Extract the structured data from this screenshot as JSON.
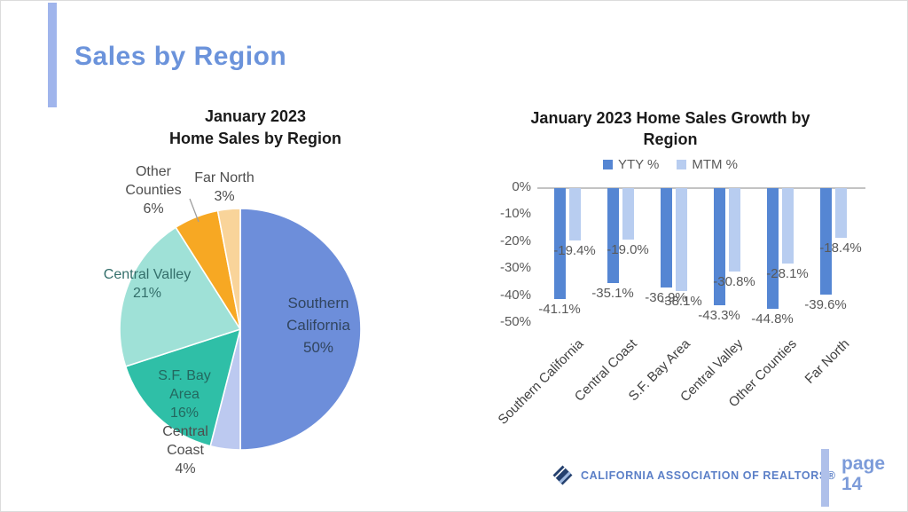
{
  "slide": {
    "title": "Sales by Region",
    "footer_text": "CALIFORNIA ASSOCIATION OF REALTORS®",
    "page_label": "page",
    "page_number": "14",
    "accent_color": "#a0b5ec",
    "title_color": "#6b93db"
  },
  "chart_data": [
    {
      "type": "pie",
      "title_line1": "January 2023",
      "title_line2": "Home Sales by Region",
      "direction": "clockwise",
      "start_angle": "top",
      "slices": [
        {
          "label": "Southern California",
          "value": 50,
          "color": "#6d8eda",
          "display": "Southern\nCalifornia\n50%"
        },
        {
          "label": "Central Coast",
          "value": 4,
          "color": "#bcc9f0",
          "display": "Central\nCoast\n4%"
        },
        {
          "label": "S.F. Bay Area",
          "value": 16,
          "color": "#2fbfa7",
          "display": "S.F. Bay\nArea\n16%"
        },
        {
          "label": "Central Valley",
          "value": 21,
          "color": "#9fe1d7",
          "display": "Central Valley\n21%"
        },
        {
          "label": "Other Counties",
          "value": 6,
          "color": "#f7a823",
          "display": "Other\nCounties\n6%"
        },
        {
          "label": "Far North",
          "value": 3,
          "color": "#f9d49a",
          "display": "Far North\n3%"
        }
      ]
    },
    {
      "type": "bar",
      "title_line1": "January 2023 Home Sales Growth by",
      "title_line2": "Region",
      "categories": [
        "Southern California",
        "Central Coast",
        "S.F. Bay Area",
        "Central Valley",
        "Other Counties",
        "Far North"
      ],
      "series": [
        {
          "name": "YTY %",
          "color": "#5586d3",
          "values": [
            -41.1,
            -35.1,
            -36.9,
            -43.3,
            -44.8,
            -39.6
          ],
          "labels": [
            "-41.1%",
            "-35.1%",
            "-36.9%",
            "-43.3%",
            "-44.8%",
            "-39.6%"
          ]
        },
        {
          "name": "MTM %",
          "color": "#b8cdf0",
          "values": [
            -19.4,
            -19.0,
            -38.1,
            -30.8,
            -28.1,
            -18.4
          ],
          "labels": [
            "-19.4%",
            "-19.0%",
            "-38.1%",
            "-30.8%",
            "-28.1%",
            "-18.4%"
          ]
        }
      ],
      "y_ticks": [
        "0%",
        "-10%",
        "-20%",
        "-30%",
        "-40%",
        "-50%"
      ],
      "ylim": [
        -50,
        0
      ],
      "grid": "zero-line-only",
      "legend_position": "top"
    }
  ]
}
